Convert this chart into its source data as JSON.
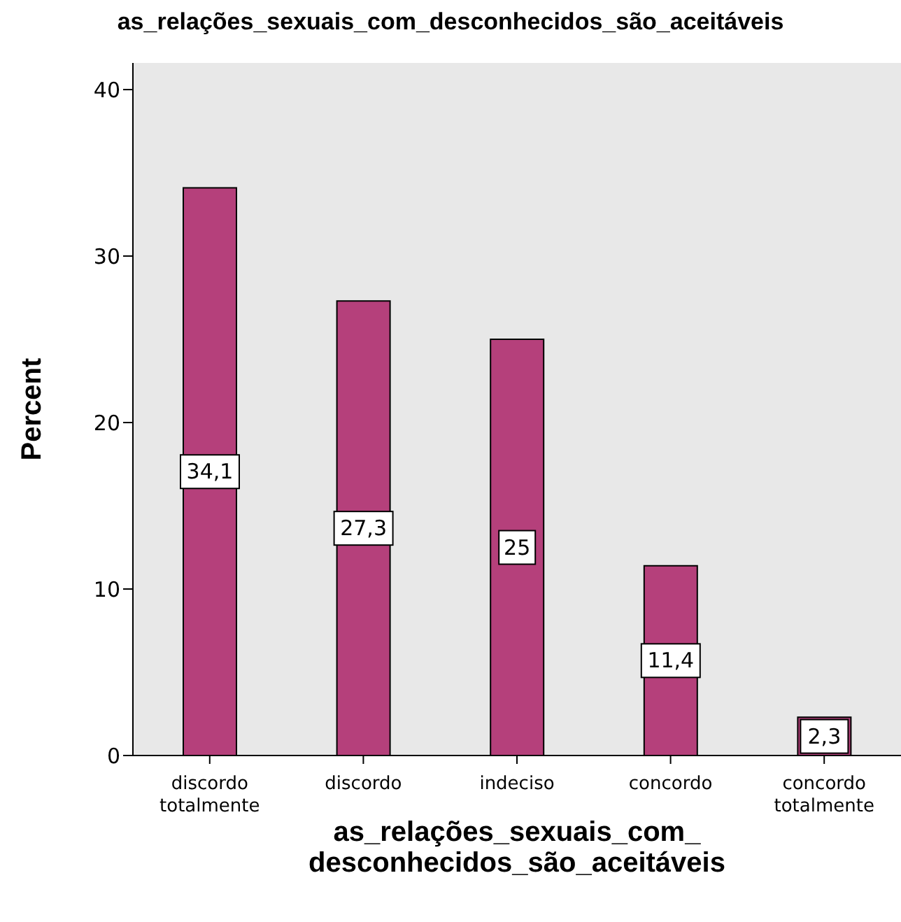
{
  "chart_data": {
    "type": "bar",
    "title": "as_relações_sexuais_com_desconhecidos_são_aceitáveis",
    "xlabel": "as_relações_sexuais_com_\ndesconhecidos_são_aceitáveis",
    "ylabel": "Percent",
    "categories": [
      "discordo totalmente",
      "discordo",
      "indeciso",
      "concordo",
      "concordo totalmente"
    ],
    "values": [
      34.1,
      27.3,
      25,
      11.4,
      2.3
    ],
    "value_labels": [
      "34,1",
      "27,3",
      "25",
      "11,4",
      "2,3"
    ],
    "color": "#b5407b",
    "ylim": [
      0,
      41.6
    ],
    "yticks": [
      0,
      10,
      20,
      30,
      40
    ],
    "grid": false
  }
}
